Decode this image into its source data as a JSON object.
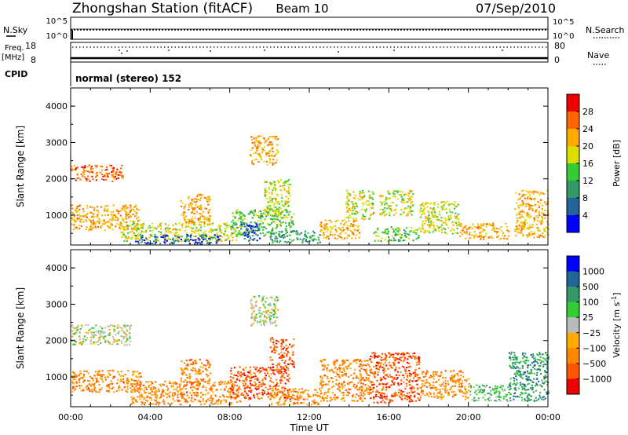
{
  "header": {
    "station": "Zhongshan Station (fitACF)",
    "beam": "Beam 10",
    "date": "07/Sep/2010"
  },
  "strip_panels": {
    "sky_panel": {
      "left_label": "N.Sky",
      "left_ticks": [
        "10^5",
        "10^0"
      ],
      "right_label": "N.Search",
      "right_ticks": [
        "10^5",
        "10^0"
      ]
    },
    "freq_panel": {
      "left_label_line1": "Freq.",
      "left_label_line2": "[MHz]",
      "left_ticks": [
        "18",
        "8"
      ],
      "right_label": "Nave",
      "right_ticks": [
        "80",
        "0"
      ]
    },
    "cpid_label": "CPID",
    "cpid_text": "normal (stereo) 152"
  },
  "chart_data": [
    {
      "type": "heatmap",
      "name": "Power",
      "ylabel": "Slant Range [km]",
      "xlabel": "",
      "ylim": [
        180,
        4500
      ],
      "yticks": [
        "4000",
        "3000",
        "2000",
        "1000"
      ],
      "colorbar": {
        "label": "Power [dB]",
        "ticks": [
          "28",
          "24",
          "20",
          "16",
          "12",
          "8",
          "4"
        ],
        "colors": [
          "#ee0000",
          "#ff6600",
          "#ffaa00",
          "#dddd00",
          "#33cc33",
          "#339966",
          "#226699",
          "#0000ff"
        ]
      },
      "regions": [
        {
          "t0": 0.0,
          "t1": 2.6,
          "r0": 1950,
          "r1": 2400,
          "level": 1
        },
        {
          "t0": 0.0,
          "t1": 3.5,
          "r0": 600,
          "r1": 1300,
          "level": 2
        },
        {
          "t0": 2.5,
          "t1": 8.5,
          "r0": 300,
          "r1": 800,
          "level": 3
        },
        {
          "t0": 3.2,
          "t1": 7.5,
          "r0": 230,
          "r1": 480,
          "level": 6
        },
        {
          "t0": 5.5,
          "t1": 7.0,
          "r0": 800,
          "r1": 1600,
          "level": 2
        },
        {
          "t0": 8.0,
          "t1": 11.2,
          "r0": 450,
          "r1": 1200,
          "level": 4
        },
        {
          "t0": 8.5,
          "t1": 9.5,
          "r0": 300,
          "r1": 800,
          "level": 6
        },
        {
          "t0": 9.0,
          "t1": 10.4,
          "r0": 2400,
          "r1": 3200,
          "level": 2
        },
        {
          "t0": 10.0,
          "t1": 12.5,
          "r0": 250,
          "r1": 600,
          "level": 5
        },
        {
          "t0": 9.7,
          "t1": 11.0,
          "r0": 1000,
          "r1": 2000,
          "level": 3
        },
        {
          "t0": 12.5,
          "t1": 14.5,
          "r0": 350,
          "r1": 900,
          "level": 2
        },
        {
          "t0": 13.8,
          "t1": 15.2,
          "r0": 900,
          "r1": 1700,
          "level": 3
        },
        {
          "t0": 15.2,
          "t1": 17.5,
          "r0": 300,
          "r1": 700,
          "level": 4
        },
        {
          "t0": 15.5,
          "t1": 17.2,
          "r0": 1000,
          "r1": 1700,
          "level": 3
        },
        {
          "t0": 17.5,
          "t1": 19.5,
          "r0": 500,
          "r1": 1400,
          "level": 3
        },
        {
          "t0": 19.5,
          "t1": 22.0,
          "r0": 350,
          "r1": 800,
          "level": 2
        },
        {
          "t0": 22.3,
          "t1": 24.0,
          "r0": 400,
          "r1": 1700,
          "level": 2
        }
      ]
    },
    {
      "type": "heatmap",
      "name": "Velocity",
      "ylabel": "Slant Range [km]",
      "xlabel": "Time UT",
      "ylim": [
        180,
        4500
      ],
      "yticks": [
        "4000",
        "3000",
        "2000",
        "1000"
      ],
      "xticks": [
        "00:00",
        "04:00",
        "08:00",
        "12:00",
        "16:00",
        "20:00",
        "00:00"
      ],
      "colorbar": {
        "label": "Velocity [m s",
        "label_sup": "-1",
        "label_end": "]",
        "ticks": [
          "1000",
          "500",
          "100",
          "25",
          "−25",
          "−100",
          "−500",
          "−1000"
        ],
        "colors": [
          "#0000ff",
          "#226699",
          "#339966",
          "#33cc33",
          "#bbbbbb",
          "#ffaa00",
          "#ff8800",
          "#ff5500",
          "#ee0000"
        ]
      },
      "regions": [
        {
          "t0": 0.0,
          "t1": 3.0,
          "r0": 1900,
          "r1": 2450,
          "level": 4
        },
        {
          "t0": 0.0,
          "t1": 3.5,
          "r0": 600,
          "r1": 1200,
          "level": 6
        },
        {
          "t0": 3.0,
          "t1": 8.5,
          "r0": 250,
          "r1": 900,
          "level": 6
        },
        {
          "t0": 5.5,
          "t1": 7.0,
          "r0": 800,
          "r1": 1500,
          "level": 6
        },
        {
          "t0": 8.0,
          "t1": 11.0,
          "r0": 400,
          "r1": 1300,
          "level": 7
        },
        {
          "t0": 9.0,
          "t1": 10.4,
          "r0": 2400,
          "r1": 3250,
          "level": 4
        },
        {
          "t0": 10.0,
          "t1": 12.5,
          "r0": 250,
          "r1": 700,
          "level": 6
        },
        {
          "t0": 10.0,
          "t1": 11.2,
          "r0": 1200,
          "r1": 2100,
          "level": 7
        },
        {
          "t0": 12.5,
          "t1": 15.0,
          "r0": 350,
          "r1": 1500,
          "level": 6
        },
        {
          "t0": 15.0,
          "t1": 17.5,
          "r0": 300,
          "r1": 1700,
          "level": 7
        },
        {
          "t0": 17.5,
          "t1": 20.0,
          "r0": 400,
          "r1": 1200,
          "level": 6
        },
        {
          "t0": 20.0,
          "t1": 22.0,
          "r0": 350,
          "r1": 800,
          "level": 3
        },
        {
          "t0": 22.0,
          "t1": 24.0,
          "r0": 350,
          "r1": 1700,
          "level": 2
        }
      ]
    }
  ]
}
